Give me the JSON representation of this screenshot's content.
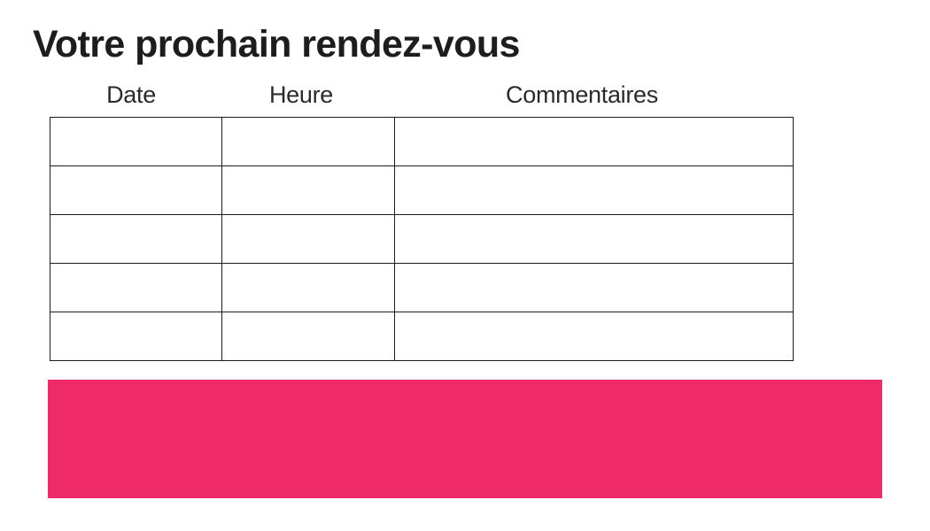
{
  "page": {
    "title": "Votre prochain rendez-vous",
    "background": "#ffffff"
  },
  "table": {
    "columns": [
      {
        "label": "Date"
      },
      {
        "label": "Heure"
      },
      {
        "label": "Commentaires"
      }
    ],
    "row_count": 5,
    "rows": [
      [
        "",
        "",
        ""
      ],
      [
        "",
        "",
        ""
      ],
      [
        "",
        "",
        ""
      ],
      [
        "",
        "",
        ""
      ],
      [
        "",
        "",
        ""
      ]
    ]
  },
  "banner": {
    "color": "#EE2A68"
  }
}
